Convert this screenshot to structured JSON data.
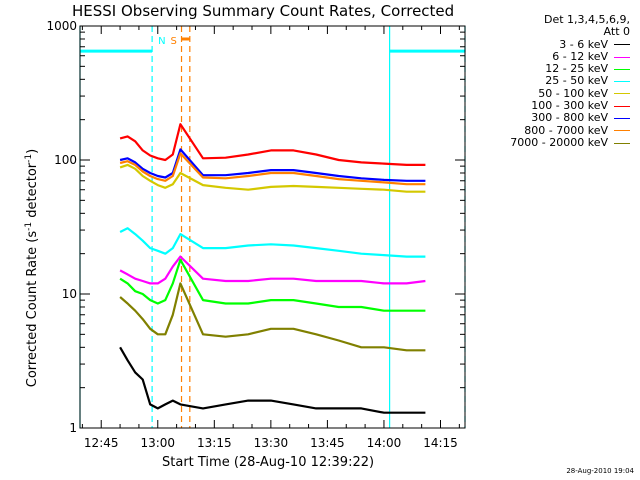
{
  "title": "HESSI Observing Summary Count Rates, Corrected",
  "legend": {
    "header_line1": "Det 1,3,4,5,6,9,",
    "header_line2": "Att 0",
    "entries": [
      {
        "label": "3 - 6 keV",
        "color": "#000000"
      },
      {
        "label": "6 - 12 keV",
        "color": "#ff00ff"
      },
      {
        "label": "12 - 25 keV",
        "color": "#00ff00"
      },
      {
        "label": "25 - 50 keV",
        "color": "#00ffff"
      },
      {
        "label": "50 - 100 keV",
        "color": "#d4c800"
      },
      {
        "label": "100 - 300 keV",
        "color": "#ff0000"
      },
      {
        "label": "300 - 800 keV",
        "color": "#0000ff"
      },
      {
        "label": "800 - 7000 keV",
        "color": "#ff8000"
      },
      {
        "label": "7000 - 20000 keV",
        "color": "#808000"
      }
    ]
  },
  "footer_timestamp": "28-Aug-2010 19:04",
  "chart_data": {
    "type": "line",
    "xlabel": "Start Time (28-Aug-10 12:39:22)",
    "ylabel_main": "Corrected Count Rate (s",
    "ylabel_sup1": "-1",
    "ylabel_mid": " detector",
    "ylabel_sup2": "-1",
    "ylabel_end": ")",
    "x_ticks": [
      "12:45",
      "13:00",
      "13:15",
      "13:30",
      "13:45",
      "14:00",
      "14:15"
    ],
    "x_tick_minutes": [
      45,
      60,
      75,
      90,
      105,
      120,
      135
    ],
    "xlim_minutes": [
      39.37,
      141.5
    ],
    "y_scale": "log",
    "ylim": [
      1,
      1000
    ],
    "y_ticks": [
      "1",
      "10",
      "100",
      "1000"
    ],
    "y_tick_values": [
      1,
      10,
      100,
      1000
    ],
    "grid": false,
    "legend_position": "right",
    "flag_lines": {
      "night": {
        "label": "N",
        "color": "#00ffff",
        "level": 650,
        "segments": [
          [
            39.37,
            58.5
          ],
          [
            121.5,
            141.5
          ]
        ],
        "markers_minutes": [
          39.37,
          58.5,
          121.5,
          141.5
        ]
      },
      "saa": {
        "label": "S",
        "color": "#ff8000",
        "level": 800,
        "segments": [
          [
            66.3,
            68.5
          ]
        ],
        "markers_minutes": [
          66.3,
          68.5
        ]
      }
    },
    "series": [
      {
        "name": "3 - 6 keV",
        "color": "#000000",
        "x": [
          50,
          52,
          54,
          56,
          58,
          60,
          62,
          64,
          66,
          72,
          78,
          84,
          90,
          96,
          102,
          108,
          114,
          120,
          126,
          131
        ],
        "y": [
          4.0,
          3.2,
          2.6,
          2.3,
          1.5,
          1.4,
          1.5,
          1.6,
          1.5,
          1.4,
          1.5,
          1.6,
          1.6,
          1.5,
          1.4,
          1.4,
          1.4,
          1.3,
          1.3,
          1.3
        ]
      },
      {
        "name": "6 - 12 keV",
        "color": "#ff00ff",
        "x": [
          50,
          52,
          54,
          56,
          58,
          60,
          62,
          64,
          66,
          72,
          78,
          84,
          90,
          96,
          102,
          108,
          114,
          120,
          126,
          131
        ],
        "y": [
          15.0,
          14.0,
          13.0,
          12.5,
          12.0,
          12.0,
          13.0,
          16.0,
          19.0,
          13.0,
          12.5,
          12.5,
          13.0,
          13.0,
          12.5,
          12.5,
          12.5,
          12.0,
          12.0,
          12.5
        ]
      },
      {
        "name": "12 - 25 keV",
        "color": "#00ff00",
        "x": [
          50,
          52,
          54,
          56,
          58,
          60,
          62,
          64,
          66,
          72,
          78,
          84,
          90,
          96,
          102,
          108,
          114,
          120,
          126,
          131
        ],
        "y": [
          13.0,
          12.0,
          10.5,
          10.0,
          9.0,
          8.5,
          9.0,
          12.0,
          18.0,
          9.0,
          8.5,
          8.5,
          9.0,
          9.0,
          8.5,
          8.0,
          8.0,
          7.5,
          7.5,
          7.5
        ]
      },
      {
        "name": "25 - 50 keV",
        "color": "#00ffff",
        "x": [
          50,
          52,
          54,
          56,
          58,
          60,
          62,
          64,
          66,
          72,
          78,
          84,
          90,
          96,
          102,
          108,
          114,
          120,
          126,
          131
        ],
        "y": [
          29.0,
          31.0,
          28.0,
          25.0,
          22.0,
          21.0,
          20.0,
          22.0,
          28.0,
          22.0,
          22.0,
          23.0,
          23.5,
          23.0,
          22.0,
          21.0,
          20.0,
          19.5,
          19.0,
          19.0
        ]
      },
      {
        "name": "50 - 100 keV",
        "color": "#d4c800",
        "x": [
          50,
          52,
          54,
          56,
          58,
          60,
          62,
          64,
          66,
          72,
          78,
          84,
          90,
          96,
          102,
          108,
          114,
          120,
          126,
          131
        ],
        "y": [
          88,
          92,
          86,
          76,
          70,
          65,
          62,
          66,
          80,
          65,
          62,
          60,
          63,
          64,
          63,
          62,
          61,
          60,
          58,
          58
        ]
      },
      {
        "name": "100 - 300 keV",
        "color": "#ff0000",
        "x": [
          50,
          52,
          54,
          56,
          58,
          60,
          62,
          64,
          66,
          72,
          78,
          84,
          90,
          96,
          102,
          108,
          114,
          120,
          126,
          131
        ],
        "y": [
          145,
          150,
          138,
          118,
          108,
          103,
          100,
          110,
          185,
          103,
          104,
          110,
          118,
          118,
          110,
          100,
          96,
          94,
          92,
          92
        ]
      },
      {
        "name": "300 - 800 keV",
        "color": "#0000ff",
        "x": [
          50,
          52,
          54,
          56,
          58,
          60,
          62,
          64,
          66,
          72,
          78,
          84,
          90,
          96,
          102,
          108,
          114,
          120,
          126,
          131
        ],
        "y": [
          100,
          103,
          96,
          86,
          80,
          76,
          74,
          80,
          120,
          77,
          77,
          80,
          84,
          84,
          80,
          76,
          73,
          71,
          70,
          70
        ]
      },
      {
        "name": "800 - 7000 keV",
        "color": "#ff8000",
        "x": [
          50,
          52,
          54,
          56,
          58,
          60,
          62,
          64,
          66,
          72,
          78,
          84,
          90,
          96,
          102,
          108,
          114,
          120,
          126,
          131
        ],
        "y": [
          95,
          98,
          92,
          82,
          76,
          72,
          70,
          76,
          112,
          74,
          73,
          76,
          80,
          80,
          76,
          72,
          70,
          68,
          66,
          66
        ]
      },
      {
        "name": "7000 - 20000 keV",
        "color": "#808000",
        "x": [
          50,
          52,
          54,
          56,
          58,
          60,
          62,
          64,
          66,
          72,
          78,
          84,
          90,
          96,
          102,
          108,
          114,
          120,
          126,
          131
        ],
        "y": [
          9.5,
          8.5,
          7.5,
          6.5,
          5.5,
          5.0,
          5.0,
          7.0,
          12.0,
          5.0,
          4.8,
          5.0,
          5.5,
          5.5,
          5.0,
          4.5,
          4.0,
          4.0,
          3.8,
          3.8
        ]
      }
    ]
  }
}
